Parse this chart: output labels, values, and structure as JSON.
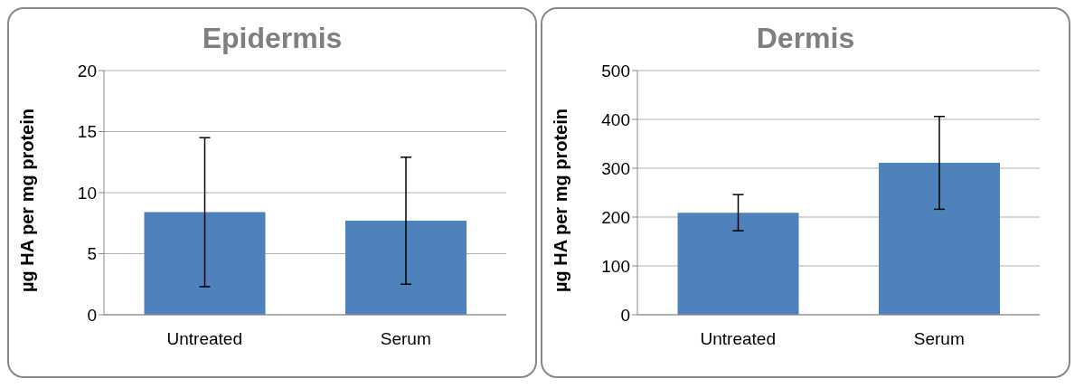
{
  "chart_data": [
    {
      "type": "bar",
      "title": "Epidermis",
      "ylabel": "µg HA per mg protein",
      "categories": [
        "Untreated",
        "Serum"
      ],
      "values": [
        8.4,
        7.7
      ],
      "errors": [
        6.1,
        5.2
      ],
      "color": "#4f81bd",
      "ylim": [
        0,
        20
      ],
      "yticks": [
        0,
        5,
        10,
        15,
        20
      ],
      "grid": "y"
    },
    {
      "type": "bar",
      "title": "Dermis",
      "ylabel": "µg HA per mg protein",
      "categories": [
        "Untreated",
        "Serum"
      ],
      "values": [
        209,
        311
      ],
      "errors": [
        37,
        95
      ],
      "color": "#4f81bd",
      "ylim": [
        0,
        500
      ],
      "yticks": [
        0,
        100,
        200,
        300,
        400,
        500
      ],
      "grid": "y"
    }
  ]
}
